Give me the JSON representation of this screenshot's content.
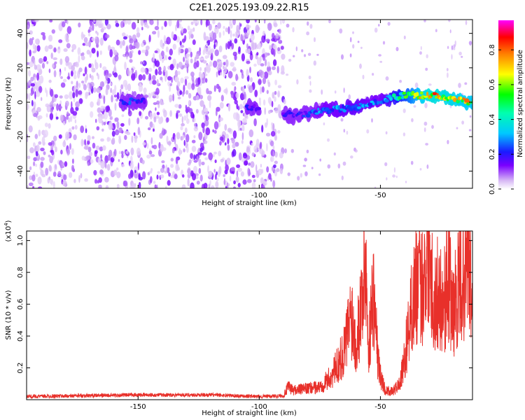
{
  "title": "C2E1.2025.193.09.22.R15",
  "chart_data": [
    {
      "type": "heatmap",
      "xlabel": "Height of straight line (km)",
      "ylabel": "Frequency (Hz)",
      "xlim": [
        -196,
        -12
      ],
      "ylim": [
        -50,
        48
      ],
      "x_ticks": [
        -150,
        -100,
        -50
      ],
      "y_ticks": [
        -40,
        -20,
        0,
        20,
        40
      ],
      "colorbar": {
        "label": "Normalized spectral amplitude",
        "range": [
          0.0,
          0.97
        ],
        "ticks": [
          0.0,
          0.2,
          0.4,
          0.6,
          0.8
        ],
        "tick_labels": [
          "0.0",
          "0.2",
          "0.4",
          "0.6",
          "0.8"
        ]
      },
      "ridge": [
        {
          "x": -155,
          "freq": 0,
          "amp": 0.25
        },
        {
          "x": -150,
          "freq": 1,
          "amp": 0.25
        },
        {
          "x": -103,
          "freq": -3,
          "amp": 0.2
        },
        {
          "x": -85,
          "freq": -8,
          "amp": 0.2
        },
        {
          "x": -75,
          "freq": -5,
          "amp": 0.3
        },
        {
          "x": -60,
          "freq": -3,
          "amp": 0.35
        },
        {
          "x": -50,
          "freq": 1,
          "amp": 0.3
        },
        {
          "x": -40,
          "freq": 4,
          "amp": 0.55
        },
        {
          "x": -30,
          "freq": 4,
          "amp": 0.85
        },
        {
          "x": -20,
          "freq": 2,
          "amp": 0.8
        },
        {
          "x": -14,
          "freq": 0,
          "amp": 0.75
        }
      ],
      "noise_region_end_x": -90
    },
    {
      "type": "line",
      "xlabel": "Height of straight line (km)",
      "ylabel": "SNR (10 * v/v)",
      "y_multiplier": "(x10^4)",
      "xlim": [
        -196,
        -12
      ],
      "ylim": [
        0,
        1.06
      ],
      "x_ticks": [
        -150,
        -100,
        -50
      ],
      "y_ticks": [
        0.2,
        0.4,
        0.6,
        0.8,
        1.0
      ],
      "color": "#e8302a",
      "series": [
        {
          "x": [
            -196,
            -150,
            -120,
            -100,
            -90,
            -88,
            -86,
            -80,
            -75,
            -70,
            -65,
            -62,
            -60,
            -58,
            -56,
            -55,
            -53,
            -51,
            -50,
            -48,
            -45,
            -42,
            -40,
            -38,
            -35,
            -33,
            -31,
            -30,
            -29,
            -28,
            -26,
            -24,
            -22,
            -20,
            -18,
            -16,
            -14,
            -12
          ],
          "values": [
            0.02,
            0.03,
            0.03,
            0.02,
            0.025,
            0.08,
            0.06,
            0.07,
            0.08,
            0.15,
            0.3,
            0.55,
            0.35,
            0.6,
            0.88,
            0.3,
            0.7,
            0.25,
            0.15,
            0.06,
            0.05,
            0.1,
            0.25,
            0.5,
            0.75,
            0.7,
            0.88,
            1.05,
            0.85,
            0.55,
            0.7,
            0.6,
            0.78,
            0.55,
            0.7,
            0.75,
            0.95,
            0.55
          ]
        }
      ]
    }
  ]
}
